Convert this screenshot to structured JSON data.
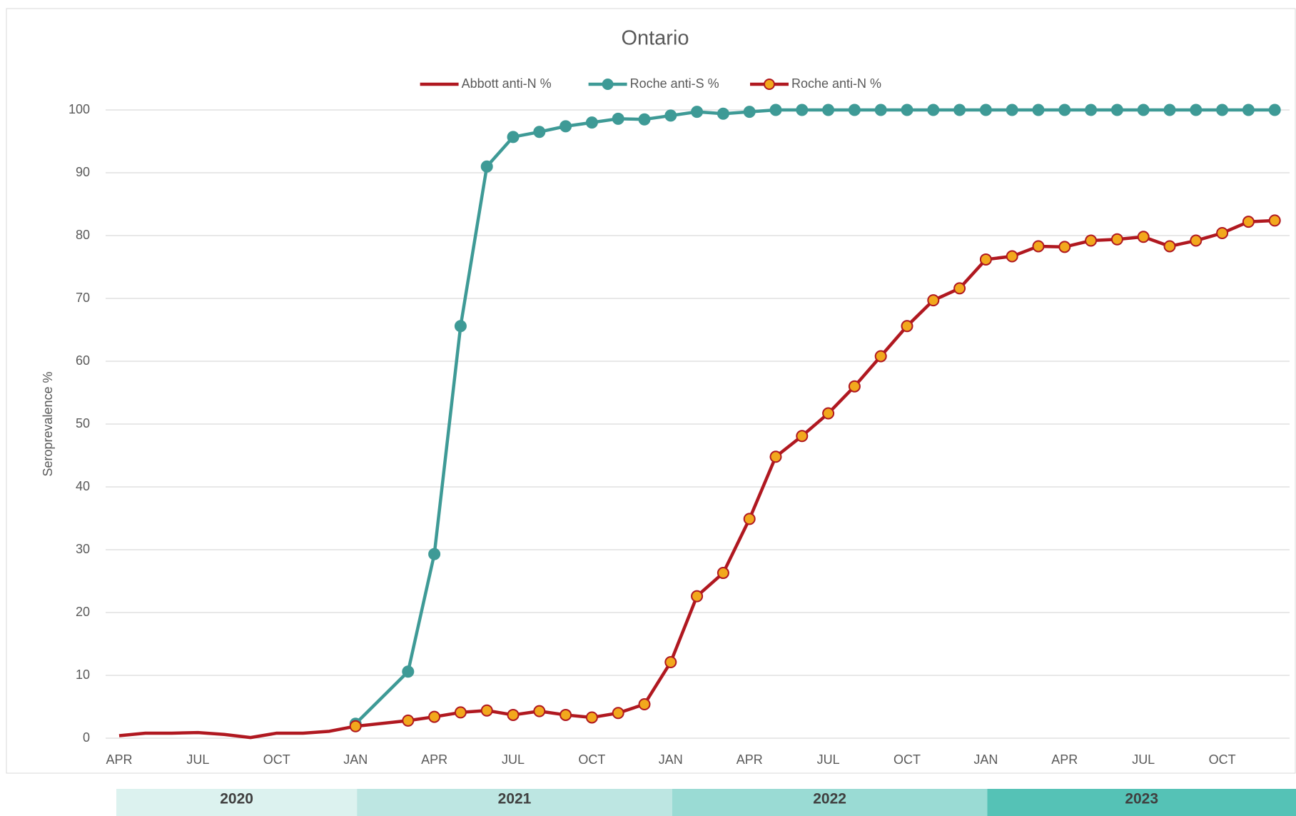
{
  "chart_data": {
    "type": "line",
    "title": "Ontario",
    "y_label": "Seroprevalence %",
    "categories": [
      "APR",
      null,
      null,
      "JUL",
      null,
      null,
      "OCT",
      null,
      null,
      "JAN",
      null,
      null,
      "APR",
      null,
      null,
      "JUL",
      null,
      null,
      "OCT",
      null,
      null,
      "JAN",
      null,
      null,
      "APR",
      null,
      null,
      "JUL",
      null,
      null,
      "OCT",
      null,
      null,
      "JAN",
      null,
      null,
      "APR",
      null,
      null,
      "JUL",
      null,
      null,
      "OCT",
      null,
      null
    ],
    "ylim": [
      0,
      100
    ],
    "yticks": [
      0,
      10,
      20,
      30,
      40,
      50,
      60,
      70,
      80,
      90,
      100
    ],
    "grid": true,
    "legend": "top",
    "span_gaps": true,
    "series": [
      {
        "name": "Abbott anti-N %",
        "color": "#b01820",
        "marker": false,
        "values": [
          0.4,
          0.8,
          0.8,
          0.9,
          0.6,
          0.1,
          0.8,
          0.8,
          1.1,
          1.9,
          null,
          null,
          null,
          null,
          null,
          null,
          null,
          null,
          null,
          null,
          null,
          null,
          null,
          null,
          null,
          null,
          null,
          null,
          null,
          null,
          null,
          null,
          null,
          null,
          null,
          null,
          null,
          null,
          null,
          null,
          null,
          null,
          null,
          null,
          null
        ]
      },
      {
        "name": "Roche anti-S %",
        "color": "#3e9a96",
        "marker": true,
        "marker_color": "#3e9a96",
        "values": [
          null,
          null,
          null,
          null,
          null,
          null,
          null,
          null,
          null,
          2.3,
          null,
          10.6,
          29.3,
          65.6,
          91,
          95.7,
          96.5,
          97.4,
          98,
          98.6,
          98.5,
          99.1,
          99.7,
          99.4,
          99.7,
          100,
          100,
          100,
          100,
          100,
          100,
          100,
          100,
          100,
          100,
          100,
          100,
          100,
          100,
          100,
          100,
          100,
          100,
          100,
          100
        ]
      },
      {
        "name": "Roche anti-N %",
        "color": "#b01820",
        "marker": true,
        "marker_color": "#f2a81d",
        "values": [
          null,
          null,
          null,
          null,
          null,
          null,
          null,
          null,
          null,
          1.9,
          null,
          2.8,
          3.4,
          4.1,
          4.4,
          3.7,
          4.3,
          3.7,
          3.3,
          4.0,
          5.4,
          12.1,
          22.6,
          26.3,
          34.9,
          44.8,
          48.1,
          51.7,
          56.0,
          60.8,
          65.6,
          69.7,
          71.6,
          76.2,
          76.7,
          78.3,
          78.2,
          79.2,
          79.4,
          79.8,
          78.3,
          79.2,
          80.4,
          82.2,
          82.4
        ]
      }
    ],
    "years": [
      {
        "label": "2020",
        "color": "#dcf2ef"
      },
      {
        "label": "2021",
        "color": "#bde6e2"
      },
      {
        "label": "2022",
        "color": "#9adbd4"
      },
      {
        "label": "2023",
        "color": "#55c2b6"
      }
    ]
  }
}
